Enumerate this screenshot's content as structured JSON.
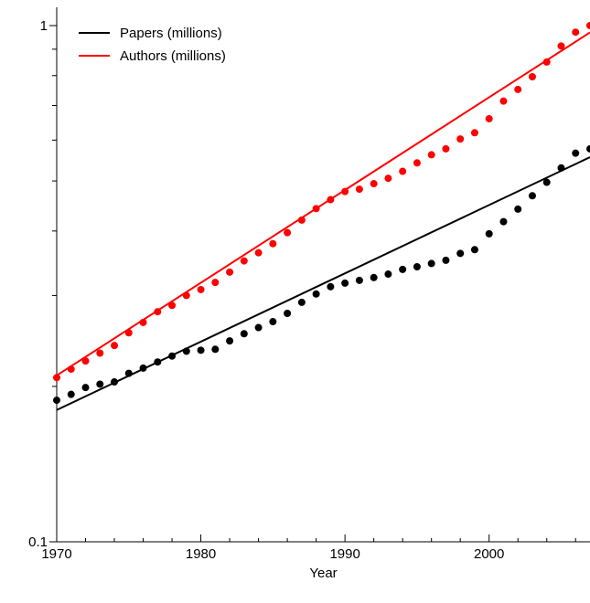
{
  "chart_data": {
    "type": "scatter",
    "xlabel": "Year",
    "ylabel": "",
    "xlim": [
      1970,
      2007
    ],
    "ylim": [
      0.1,
      1.0
    ],
    "yscale": "log",
    "grid": false,
    "legend_position": "top-left",
    "x_ticks": [
      1970,
      1980,
      1990,
      2000
    ],
    "x_tick_labels": [
      "1970",
      "1980",
      "1990",
      "2000"
    ],
    "y_ticks": [
      0.1,
      1
    ],
    "y_tick_labels": [
      "0.1",
      "1"
    ],
    "x": [
      1970,
      1971,
      1972,
      1973,
      1974,
      1975,
      1976,
      1977,
      1978,
      1979,
      1980,
      1981,
      1982,
      1983,
      1984,
      1985,
      1986,
      1987,
      1988,
      1989,
      1990,
      1991,
      1992,
      1993,
      1994,
      1995,
      1996,
      1997,
      1998,
      1999,
      2000,
      2001,
      2002,
      2003,
      2004,
      2005,
      2006,
      2007
    ],
    "series": [
      {
        "name": "Papers (millions)",
        "color": "#000000",
        "values": [
          0.188,
          0.193,
          0.199,
          0.202,
          0.204,
          0.212,
          0.217,
          0.223,
          0.229,
          0.234,
          0.235,
          0.236,
          0.245,
          0.253,
          0.26,
          0.267,
          0.277,
          0.291,
          0.302,
          0.312,
          0.317,
          0.321,
          0.325,
          0.33,
          0.337,
          0.341,
          0.346,
          0.351,
          0.362,
          0.368,
          0.395,
          0.417,
          0.441,
          0.468,
          0.497,
          0.53,
          0.566,
          0.577
        ],
        "fit": [
          0.18,
          0.556
        ]
      },
      {
        "name": "Authors (millions)",
        "color": "#ff0000",
        "values": [
          0.208,
          0.216,
          0.224,
          0.232,
          0.24,
          0.254,
          0.266,
          0.279,
          0.287,
          0.3,
          0.308,
          0.318,
          0.333,
          0.35,
          0.363,
          0.378,
          0.397,
          0.42,
          0.442,
          0.46,
          0.477,
          0.482,
          0.494,
          0.506,
          0.522,
          0.542,
          0.562,
          0.577,
          0.603,
          0.62,
          0.66,
          0.714,
          0.752,
          0.796,
          0.85,
          0.913,
          0.971,
          1.0
        ],
        "fit": [
          0.21,
          0.97
        ]
      }
    ]
  }
}
